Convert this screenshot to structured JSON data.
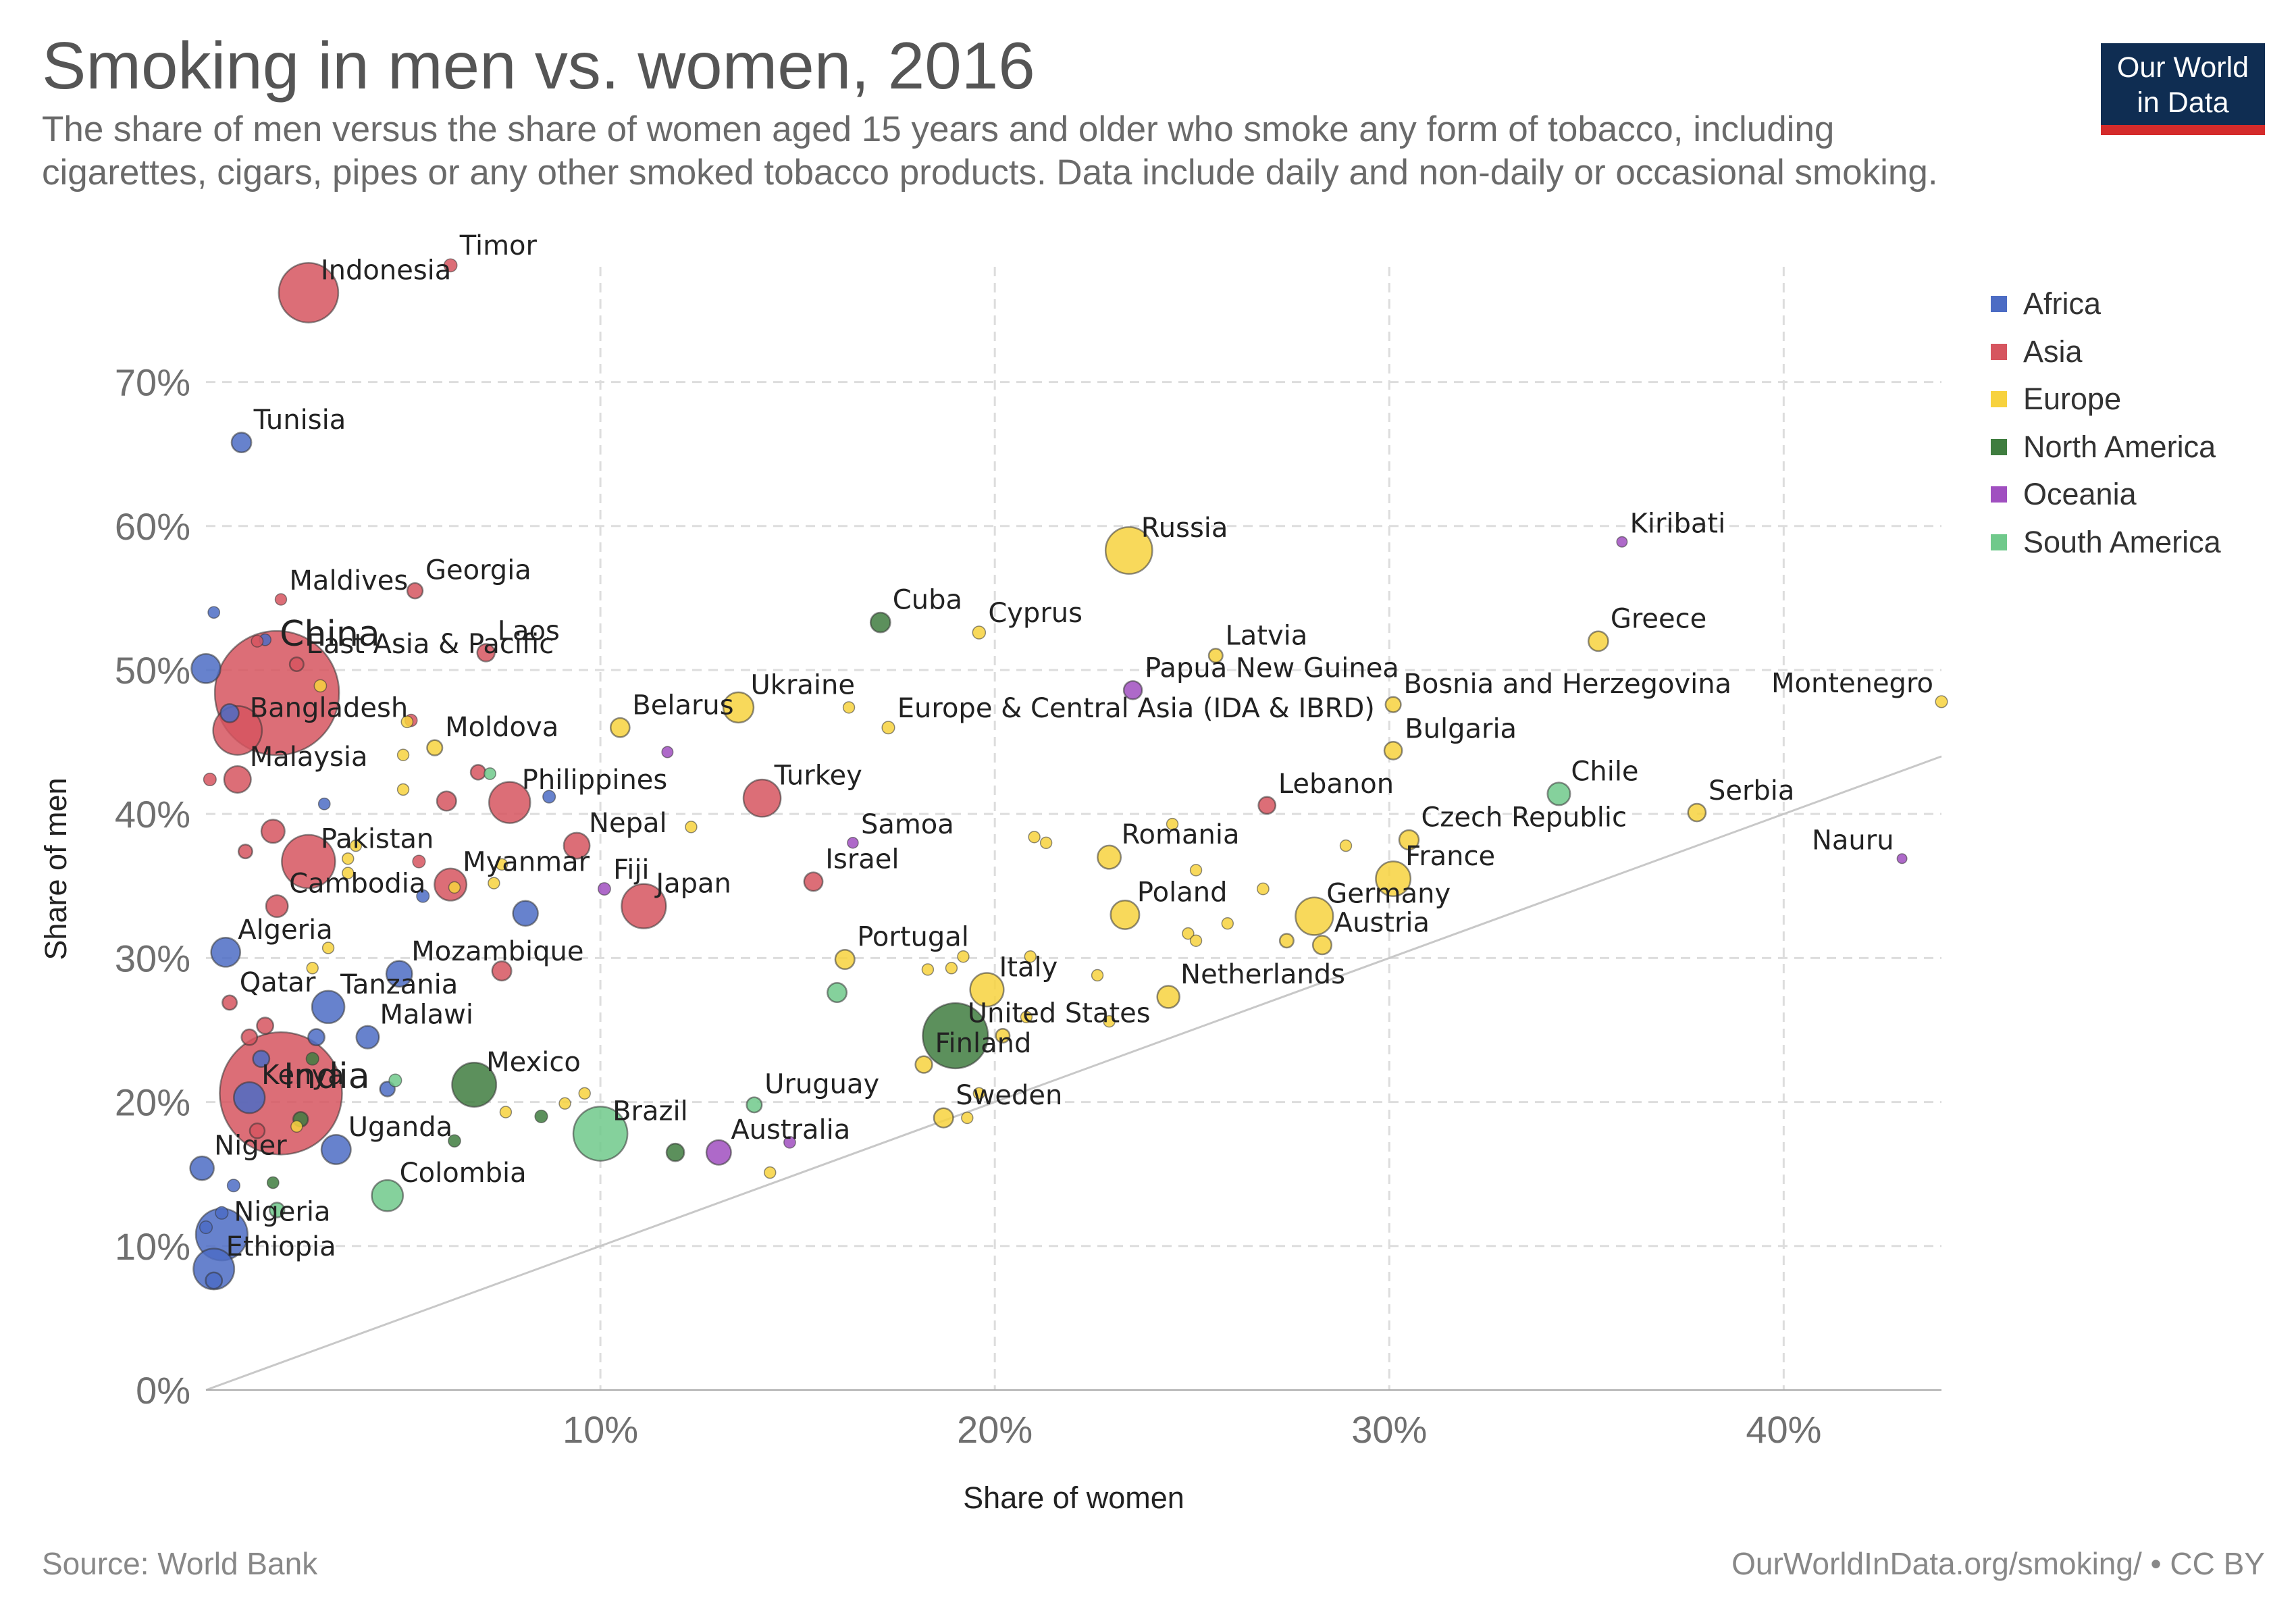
{
  "header": {
    "title": "Smoking in men vs. women, 2016",
    "subtitle": "The share of men versus the share of women aged 15 years and older who smoke any form of tobacco, including cigarettes, cigars, pipes or any other smoked tobacco products. Data include daily and non-daily or occasional smoking."
  },
  "logo": {
    "line1": "Our World",
    "line2": "in Data"
  },
  "footer": {
    "source": "Source: World Bank",
    "credit": "OurWorldInData.org/smoking/ • CC BY"
  },
  "chart_data": {
    "type": "scatter",
    "title": "Smoking in men vs. women, 2016",
    "xlabel": "Share of women",
    "ylabel": "Share of men",
    "xlim": [
      0,
      44
    ],
    "ylim": [
      0,
      78
    ],
    "x_ticks": [
      10,
      20,
      30,
      40
    ],
    "x_tick_labels": [
      "10%",
      "20%",
      "30%",
      "40%"
    ],
    "y_ticks": [
      0,
      10,
      20,
      30,
      40,
      50,
      60,
      70
    ],
    "y_tick_labels": [
      "0%",
      "10%",
      "20%",
      "30%",
      "40%",
      "50%",
      "60%",
      "70%"
    ],
    "grid": true,
    "diagonal_reference_line": true,
    "legend_position": "right",
    "regions": [
      {
        "name": "Africa",
        "color": "#4c6cc4"
      },
      {
        "name": "Asia",
        "color": "#d6555f"
      },
      {
        "name": "Europe",
        "color": "#f7d23e"
      },
      {
        "name": "North America",
        "color": "#3f7d3f"
      },
      {
        "name": "Oceania",
        "color": "#a04fc0"
      },
      {
        "name": "South America",
        "color": "#70c98b"
      }
    ],
    "points": [
      {
        "label": "Indonesia",
        "region": "Asia",
        "x": 2.6,
        "y": 76.2,
        "pop": 260
      },
      {
        "label": "Timor",
        "region": "Asia",
        "x": 6.2,
        "y": 78.1,
        "pop": 1.3
      },
      {
        "label": "Tunisia",
        "region": "Africa",
        "x": 0.9,
        "y": 65.8,
        "pop": 11
      },
      {
        "label": "Russia",
        "region": "Europe",
        "x": 23.4,
        "y": 58.3,
        "pop": 144
      },
      {
        "label": "Kiribati",
        "region": "Oceania",
        "x": 35.9,
        "y": 58.9,
        "pop": 0.1
      },
      {
        "label": "Maldives",
        "region": "Asia",
        "x": 1.9,
        "y": 54.9,
        "pop": 0.4
      },
      {
        "label": "Georgia",
        "region": "Asia",
        "x": 5.3,
        "y": 55.5,
        "pop": 3.7
      },
      {
        "label": "Cuba",
        "region": "North America",
        "x": 17.1,
        "y": 53.3,
        "pop": 11
      },
      {
        "label": "Cyprus",
        "region": "Europe",
        "x": 19.6,
        "y": 52.6,
        "pop": 1.2
      },
      {
        "label": "Greece",
        "region": "Europe",
        "x": 35.3,
        "y": 52.0,
        "pop": 11
      },
      {
        "label": "China",
        "region": "Asia",
        "x": 1.8,
        "y": 48.4,
        "pop": 1400
      },
      {
        "label": "Laos",
        "region": "Asia",
        "x": 7.1,
        "y": 51.2,
        "pop": 6.8
      },
      {
        "label": "East Asia & Pacific",
        "region": "Asia",
        "x": 2.3,
        "y": 50.4,
        "pop": 2
      },
      {
        "label": "Latvia",
        "region": "Europe",
        "x": 25.6,
        "y": 51.0,
        "pop": 2
      },
      {
        "label": "Papua New Guinea",
        "region": "Oceania",
        "x": 23.5,
        "y": 48.6,
        "pop": 8
      },
      {
        "label": "Bosnia and Herzegovina",
        "region": "Europe",
        "x": 30.1,
        "y": 47.6,
        "pop": 3.5
      },
      {
        "label": "Montenegro",
        "region": "Europe",
        "x": 44.0,
        "y": 47.8,
        "pop": 0.6
      },
      {
        "label": "Ukraine",
        "region": "Europe",
        "x": 13.5,
        "y": 47.4,
        "pop": 45
      },
      {
        "label": "Belarus",
        "region": "Europe",
        "x": 10.5,
        "y": 46.0,
        "pop": 9.5
      },
      {
        "label": "Europe & Central Asia (IDA & IBRD)",
        "region": "Europe",
        "x": 17.3,
        "y": 46.0,
        "pop": 1
      },
      {
        "label": "Bangladesh",
        "region": "Asia",
        "x": 0.8,
        "y": 45.8,
        "pop": 160
      },
      {
        "label": "Moldova",
        "region": "Europe",
        "x": 5.8,
        "y": 44.6,
        "pop": 3.5
      },
      {
        "label": "Bulgaria",
        "region": "Europe",
        "x": 30.1,
        "y": 44.4,
        "pop": 7
      },
      {
        "label": "Malaysia",
        "region": "Asia",
        "x": 0.8,
        "y": 42.4,
        "pop": 31
      },
      {
        "label": "Philippines",
        "region": "Asia",
        "x": 7.7,
        "y": 40.8,
        "pop": 104
      },
      {
        "label": "Turkey",
        "region": "Asia",
        "x": 14.1,
        "y": 41.1,
        "pop": 80
      },
      {
        "label": "Chile",
        "region": "South America",
        "x": 34.3,
        "y": 41.4,
        "pop": 18
      },
      {
        "label": "Lebanon",
        "region": "Asia",
        "x": 26.9,
        "y": 40.6,
        "pop": 6
      },
      {
        "label": "Serbia",
        "region": "Europe",
        "x": 37.8,
        "y": 40.1,
        "pop": 7
      },
      {
        "label": "Nepal",
        "region": "Asia",
        "x": 9.4,
        "y": 37.8,
        "pop": 28
      },
      {
        "label": "Samoa",
        "region": "Oceania",
        "x": 16.4,
        "y": 38.0,
        "pop": 0.2
      },
      {
        "label": "Czech Republic",
        "region": "Europe",
        "x": 30.5,
        "y": 38.2,
        "pop": 10.6
      },
      {
        "label": "Pakistan",
        "region": "Asia",
        "x": 2.6,
        "y": 36.7,
        "pop": 200
      },
      {
        "label": "Romania",
        "region": "Europe",
        "x": 22.9,
        "y": 37.0,
        "pop": 19.7
      },
      {
        "label": "Myanmar",
        "region": "Asia",
        "x": 6.2,
        "y": 35.1,
        "pop": 53
      },
      {
        "label": "Fiji",
        "region": "Oceania",
        "x": 10.1,
        "y": 34.8,
        "pop": 0.9
      },
      {
        "label": "Japan",
        "region": "Asia",
        "x": 11.1,
        "y": 33.6,
        "pop": 127
      },
      {
        "label": "Israel",
        "region": "Asia",
        "x": 15.4,
        "y": 35.3,
        "pop": 8.5
      },
      {
        "label": "France",
        "region": "Europe",
        "x": 30.1,
        "y": 35.5,
        "pop": 66
      },
      {
        "label": "Cambodia",
        "region": "Asia",
        "x": 1.8,
        "y": 33.6,
        "pop": 16
      },
      {
        "label": "Poland",
        "region": "Europe",
        "x": 23.3,
        "y": 33.0,
        "pop": 38
      },
      {
        "label": "Germany",
        "region": "Europe",
        "x": 28.1,
        "y": 32.9,
        "pop": 82
      },
      {
        "label": "Algeria",
        "region": "Africa",
        "x": 0.5,
        "y": 30.4,
        "pop": 40
      },
      {
        "label": "Austria",
        "region": "Europe",
        "x": 28.3,
        "y": 30.9,
        "pop": 8.7
      },
      {
        "label": "Portugal",
        "region": "Europe",
        "x": 16.2,
        "y": 29.9,
        "pop": 10
      },
      {
        "label": "Mozambique",
        "region": "Africa",
        "x": 4.9,
        "y": 28.9,
        "pop": 28
      },
      {
        "label": "Italy",
        "region": "Europe",
        "x": 19.8,
        "y": 27.8,
        "pop": 60
      },
      {
        "label": "Netherlands",
        "region": "Europe",
        "x": 24.4,
        "y": 27.3,
        "pop": 17
      },
      {
        "label": "Qatar",
        "region": "Asia",
        "x": 0.6,
        "y": 26.9,
        "pop": 2.6
      },
      {
        "label": "Tanzania",
        "region": "Africa",
        "x": 3.1,
        "y": 26.6,
        "pop": 55
      },
      {
        "label": "United States",
        "region": "North America",
        "x": 19.0,
        "y": 24.6,
        "pop": 323
      },
      {
        "label": "Malawi",
        "region": "Africa",
        "x": 4.1,
        "y": 24.5,
        "pop": 18
      },
      {
        "label": "India",
        "region": "Asia",
        "x": 1.9,
        "y": 20.6,
        "pop": 1320
      },
      {
        "label": "Finland",
        "region": "Europe",
        "x": 18.2,
        "y": 22.6,
        "pop": 5.5
      },
      {
        "label": "Kenya",
        "region": "Africa",
        "x": 1.1,
        "y": 20.3,
        "pop": 48
      },
      {
        "label": "Mexico",
        "region": "North America",
        "x": 6.8,
        "y": 21.2,
        "pop": 125
      },
      {
        "label": "Uruguay",
        "region": "South America",
        "x": 13.9,
        "y": 19.8,
        "pop": 3.4
      },
      {
        "label": "Sweden",
        "region": "Europe",
        "x": 18.7,
        "y": 18.9,
        "pop": 10
      },
      {
        "label": "Brazil",
        "region": "South America",
        "x": 10.0,
        "y": 17.8,
        "pop": 207
      },
      {
        "label": "Uganda",
        "region": "Africa",
        "x": 3.3,
        "y": 16.7,
        "pop": 41
      },
      {
        "label": "Australia",
        "region": "Oceania",
        "x": 13.0,
        "y": 16.5,
        "pop": 24
      },
      {
        "label": "Niger",
        "region": "Africa",
        "x": -0.1,
        "y": 15.4,
        "pop": 21
      },
      {
        "label": "Colombia",
        "region": "South America",
        "x": 4.6,
        "y": 13.5,
        "pop": 49
      },
      {
        "label": "Nigeria",
        "region": "Africa",
        "x": 0.4,
        "y": 10.8,
        "pop": 186
      },
      {
        "label": "Ethiopia",
        "region": "Africa",
        "x": 0.2,
        "y": 8.4,
        "pop": 102
      },
      {
        "label": "Nauru",
        "region": "Oceania",
        "x": 43.0,
        "y": 36.9,
        "pop": 0.01
      },
      {
        "region": "Africa",
        "x": 0.0,
        "y": 50.1,
        "pop": 40
      },
      {
        "region": "Africa",
        "x": 0.6,
        "y": 47.0,
        "pop": 8
      },
      {
        "region": "Africa",
        "x": 0.2,
        "y": 54.0,
        "pop": 0.5
      },
      {
        "region": "Africa",
        "x": 1.5,
        "y": 52.1,
        "pop": 0.5
      },
      {
        "region": "Asia",
        "x": 1.3,
        "y": 52.0,
        "pop": 0.5
      },
      {
        "region": "Asia",
        "x": 0.1,
        "y": 42.4,
        "pop": 1
      },
      {
        "region": "Africa",
        "x": 3.0,
        "y": 40.7,
        "pop": 0.5
      },
      {
        "region": "Asia",
        "x": 1.7,
        "y": 38.8,
        "pop": 20
      },
      {
        "region": "Asia",
        "x": 6.1,
        "y": 40.9,
        "pop": 10
      },
      {
        "region": "Asia",
        "x": 6.9,
        "y": 42.9,
        "pop": 3
      },
      {
        "region": "Asia",
        "x": 1.0,
        "y": 37.4,
        "pop": 2
      },
      {
        "region": "Asia",
        "x": 5.4,
        "y": 36.7,
        "pop": 1
      },
      {
        "region": "Africa",
        "x": 8.1,
        "y": 33.1,
        "pop": 25
      },
      {
        "region": "Africa",
        "x": 5.5,
        "y": 34.3,
        "pop": 1
      },
      {
        "region": "Africa",
        "x": 8.7,
        "y": 41.2,
        "pop": 1
      },
      {
        "region": "Asia",
        "x": 7.5,
        "y": 29.1,
        "pop": 10
      },
      {
        "region": "Asia",
        "x": 1.5,
        "y": 25.3,
        "pop": 5
      },
      {
        "region": "Asia",
        "x": 1.1,
        "y": 24.5,
        "pop": 4
      },
      {
        "region": "Africa",
        "x": 1.4,
        "y": 23.0,
        "pop": 5
      },
      {
        "region": "Africa",
        "x": 2.8,
        "y": 24.5,
        "pop": 5
      },
      {
        "region": "Africa",
        "x": 4.6,
        "y": 20.9,
        "pop": 3
      },
      {
        "region": "North America",
        "x": 2.7,
        "y": 23.0,
        "pop": 1
      },
      {
        "region": "South America",
        "x": 4.8,
        "y": 21.5,
        "pop": 1
      },
      {
        "region": "North America",
        "x": 2.4,
        "y": 18.8,
        "pop": 3
      },
      {
        "region": "Asia",
        "x": 1.3,
        "y": 18.0,
        "pop": 3
      },
      {
        "region": "North America",
        "x": 8.5,
        "y": 19.0,
        "pop": 1
      },
      {
        "region": "North America",
        "x": 11.9,
        "y": 16.5,
        "pop": 7
      },
      {
        "region": "North America",
        "x": 6.3,
        "y": 17.3,
        "pop": 0.8
      },
      {
        "region": "Oceania",
        "x": 14.8,
        "y": 17.2,
        "pop": 0.5
      },
      {
        "region": "Africa",
        "x": 0.7,
        "y": 14.2,
        "pop": 1
      },
      {
        "region": "North America",
        "x": 1.7,
        "y": 14.4,
        "pop": 0.5
      },
      {
        "region": "South America",
        "x": 1.8,
        "y": 12.5,
        "pop": 3
      },
      {
        "region": "Africa",
        "x": 0.0,
        "y": 11.3,
        "pop": 1
      },
      {
        "region": "Africa",
        "x": 0.4,
        "y": 12.3,
        "pop": 1
      },
      {
        "region": "Africa",
        "x": 0.2,
        "y": 7.6,
        "pop": 5
      },
      {
        "region": "South America",
        "x": 16.0,
        "y": 27.6,
        "pop": 10
      },
      {
        "region": "Europe",
        "x": 2.9,
        "y": 48.9,
        "pop": 0.8
      },
      {
        "region": "Europe",
        "x": 5.1,
        "y": 46.4,
        "pop": 0.5
      },
      {
        "region": "Asia",
        "x": 5.2,
        "y": 46.5,
        "pop": 0.8
      },
      {
        "region": "Europe",
        "x": 5.0,
        "y": 44.1,
        "pop": 0.4
      },
      {
        "region": "Europe",
        "x": 5.0,
        "y": 41.7,
        "pop": 0.4
      },
      {
        "region": "Oceania",
        "x": 11.7,
        "y": 44.3,
        "pop": 0.3
      },
      {
        "region": "South America",
        "x": 7.2,
        "y": 42.8,
        "pop": 0.5
      },
      {
        "region": "Europe",
        "x": 16.3,
        "y": 47.4,
        "pop": 0.4
      },
      {
        "region": "Europe",
        "x": 12.3,
        "y": 39.1,
        "pop": 0.4
      },
      {
        "region": "Europe",
        "x": 21.0,
        "y": 38.4,
        "pop": 0.4
      },
      {
        "region": "Europe",
        "x": 21.3,
        "y": 38.0,
        "pop": 0.4
      },
      {
        "region": "Europe",
        "x": 24.5,
        "y": 39.3,
        "pop": 0.4
      },
      {
        "region": "Europe",
        "x": 28.9,
        "y": 37.8,
        "pop": 0.4
      },
      {
        "region": "Europe",
        "x": 25.1,
        "y": 36.1,
        "pop": 0.4
      },
      {
        "region": "Europe",
        "x": 26.8,
        "y": 34.8,
        "pop": 0.5
      },
      {
        "region": "Europe",
        "x": 25.9,
        "y": 32.4,
        "pop": 0.4
      },
      {
        "region": "Europe",
        "x": 24.9,
        "y": 31.7,
        "pop": 0.4
      },
      {
        "region": "Europe",
        "x": 25.1,
        "y": 31.2,
        "pop": 0.4
      },
      {
        "region": "Europe",
        "x": 27.4,
        "y": 31.2,
        "pop": 2
      },
      {
        "region": "Europe",
        "x": 2.7,
        "y": 29.3,
        "pop": 0.4
      },
      {
        "region": "Europe",
        "x": 3.1,
        "y": 30.7,
        "pop": 0.4
      },
      {
        "region": "Europe",
        "x": 3.6,
        "y": 35.9,
        "pop": 0.4
      },
      {
        "region": "Europe",
        "x": 3.8,
        "y": 37.8,
        "pop": 0.4
      },
      {
        "region": "Europe",
        "x": 3.6,
        "y": 36.9,
        "pop": 0.4
      },
      {
        "region": "Europe",
        "x": 7.3,
        "y": 35.2,
        "pop": 0.4
      },
      {
        "region": "Europe",
        "x": 7.5,
        "y": 36.5,
        "pop": 0.4
      },
      {
        "region": "Europe",
        "x": 6.3,
        "y": 34.9,
        "pop": 0.4
      },
      {
        "region": "Europe",
        "x": 18.3,
        "y": 29.2,
        "pop": 0.4
      },
      {
        "region": "Europe",
        "x": 18.9,
        "y": 29.3,
        "pop": 0.4
      },
      {
        "region": "Europe",
        "x": 19.2,
        "y": 30.1,
        "pop": 0.4
      },
      {
        "region": "Europe",
        "x": 20.9,
        "y": 30.1,
        "pop": 0.4
      },
      {
        "region": "Europe",
        "x": 22.6,
        "y": 28.8,
        "pop": 0.4
      },
      {
        "region": "Europe",
        "x": 20.8,
        "y": 25.9,
        "pop": 0.4
      },
      {
        "region": "Europe",
        "x": 22.9,
        "y": 25.6,
        "pop": 0.4
      },
      {
        "region": "Europe",
        "x": 20.2,
        "y": 24.6,
        "pop": 2
      },
      {
        "region": "Europe",
        "x": 19.6,
        "y": 20.6,
        "pop": 0.4
      },
      {
        "region": "Europe",
        "x": 19.3,
        "y": 18.9,
        "pop": 0.4
      },
      {
        "region": "Europe",
        "x": 14.3,
        "y": 15.1,
        "pop": 0.4
      },
      {
        "region": "Europe",
        "x": 9.6,
        "y": 20.6,
        "pop": 0.4
      },
      {
        "region": "Europe",
        "x": 9.1,
        "y": 19.9,
        "pop": 0.4
      },
      {
        "region": "Europe",
        "x": 7.6,
        "y": 19.3,
        "pop": 0.4
      },
      {
        "region": "Europe",
        "x": 2.3,
        "y": 18.3,
        "pop": 0.4
      }
    ]
  }
}
